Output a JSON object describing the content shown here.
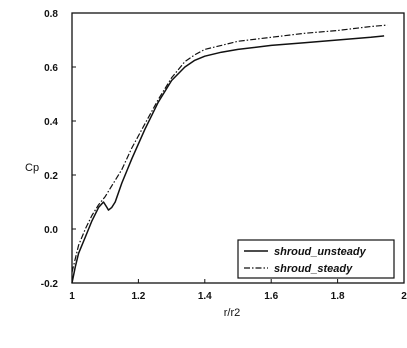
{
  "chart_data": {
    "type": "line",
    "xlabel": "r/r2",
    "ylabel": "Cp",
    "xlim": [
      1,
      2
    ],
    "ylim": [
      -0.2,
      0.8
    ],
    "xticks": [
      "1",
      "1.2",
      "1.4",
      "1.6",
      "1.8",
      "2"
    ],
    "yticks": [
      "-0.2",
      "0.0",
      "0.2",
      "0.4",
      "0.6",
      "0.8"
    ],
    "grid": false,
    "legend_position": "bottom-right",
    "series": [
      {
        "name": "shroud_unsteady",
        "style": "solid",
        "color": "#111111",
        "x": [
          1.0,
          1.01,
          1.02,
          1.04,
          1.06,
          1.08,
          1.095,
          1.105,
          1.11,
          1.12,
          1.13,
          1.15,
          1.18,
          1.22,
          1.26,
          1.3,
          1.34,
          1.37,
          1.4,
          1.45,
          1.5,
          1.6,
          1.7,
          1.8,
          1.9,
          1.94
        ],
        "y": [
          -0.2,
          -0.14,
          -0.09,
          -0.03,
          0.03,
          0.08,
          0.1,
          0.08,
          0.07,
          0.08,
          0.1,
          0.17,
          0.26,
          0.37,
          0.47,
          0.55,
          0.6,
          0.625,
          0.64,
          0.655,
          0.665,
          0.68,
          0.69,
          0.7,
          0.71,
          0.715
        ]
      },
      {
        "name": "shroud_steady",
        "style": "dash-dot",
        "color": "#111111",
        "x": [
          1.0,
          1.01,
          1.02,
          1.04,
          1.06,
          1.08,
          1.1,
          1.12,
          1.15,
          1.18,
          1.22,
          1.26,
          1.3,
          1.34,
          1.37,
          1.4,
          1.45,
          1.5,
          1.6,
          1.7,
          1.8,
          1.9,
          1.95
        ],
        "y": [
          -0.16,
          -0.11,
          -0.06,
          0.0,
          0.05,
          0.09,
          0.12,
          0.16,
          0.22,
          0.3,
          0.39,
          0.48,
          0.56,
          0.62,
          0.645,
          0.665,
          0.68,
          0.695,
          0.71,
          0.725,
          0.735,
          0.75,
          0.755
        ]
      }
    ]
  }
}
